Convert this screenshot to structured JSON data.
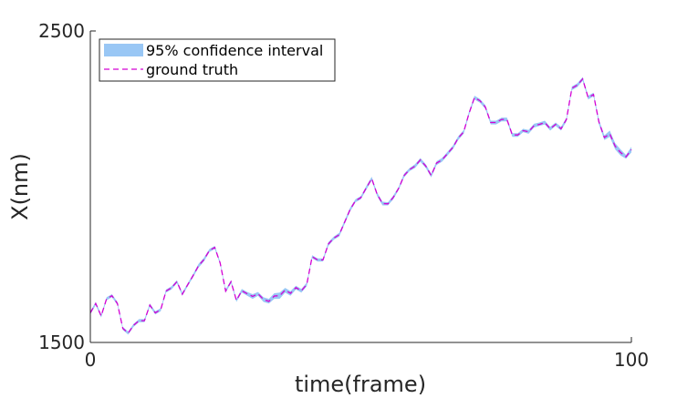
{
  "chart_data": {
    "type": "line",
    "title": "",
    "xlabel": "time(frame)",
    "ylabel": "X(nm)",
    "xlim": [
      0,
      100
    ],
    "ylim": [
      1500,
      2500
    ],
    "xticks": [
      "0",
      "100"
    ],
    "yticks": [
      "1500",
      "2500"
    ],
    "grid": false,
    "legend_position": "top-left",
    "series": [
      {
        "name": "95% confidence interval",
        "kind": "band",
        "color": "#99c7f5",
        "x": [
          0,
          1,
          2,
          3,
          4,
          5,
          6,
          7,
          8,
          9,
          10,
          11,
          12,
          13,
          14,
          15,
          16,
          17,
          18,
          19,
          20,
          21,
          22,
          23,
          24,
          25,
          26,
          27,
          28,
          29,
          30,
          31,
          32,
          33,
          34,
          35,
          36,
          37,
          38,
          39,
          40,
          41,
          42,
          43,
          44,
          45,
          46,
          47,
          48,
          49,
          50,
          51,
          52,
          53,
          54,
          55,
          56,
          57,
          58,
          59,
          60,
          61,
          62,
          63,
          64,
          65,
          66,
          67,
          68,
          69,
          70,
          71,
          72,
          73,
          74,
          75,
          76,
          77,
          78,
          79,
          80,
          81,
          82,
          83,
          84,
          85,
          86,
          87,
          88,
          89,
          90,
          91,
          92,
          93,
          94,
          95,
          96,
          97,
          98,
          99,
          100
        ],
        "lower": [
          1590,
          1620,
          1580,
          1635,
          1645,
          1620,
          1540,
          1525,
          1550,
          1565,
          1565,
          1615,
          1590,
          1600,
          1660,
          1670,
          1690,
          1650,
          1680,
          1710,
          1740,
          1760,
          1790,
          1800,
          1750,
          1660,
          1690,
          1630,
          1660,
          1650,
          1640,
          1650,
          1630,
          1625,
          1640,
          1640,
          1660,
          1650,
          1670,
          1660,
          1680,
          1770,
          1760,
          1760,
          1810,
          1830,
          1840,
          1880,
          1920,
          1950,
          1960,
          1990,
          2020,
          1970,
          1940,
          1940,
          1960,
          1990,
          2030,
          2050,
          2060,
          2080,
          2060,
          2030,
          2070,
          2080,
          2100,
          2120,
          2150,
          2170,
          2230,
          2280,
          2270,
          2250,
          2200,
          2200,
          2210,
          2210,
          2160,
          2160,
          2175,
          2170,
          2190,
          2195,
          2200,
          2180,
          2195,
          2180,
          2210,
          2310,
          2320,
          2340,
          2280,
          2290,
          2200,
          2150,
          2160,
          2120,
          2100,
          2090,
          2110
        ],
        "upper": [
          1600,
          1630,
          1590,
          1645,
          1655,
          1630,
          1550,
          1535,
          1560,
          1575,
          1575,
          1625,
          1600,
          1610,
          1670,
          1680,
          1700,
          1660,
          1690,
          1720,
          1752,
          1772,
          1800,
          1810,
          1760,
          1670,
          1700,
          1640,
          1672,
          1662,
          1655,
          1662,
          1645,
          1640,
          1658,
          1660,
          1675,
          1665,
          1682,
          1672,
          1692,
          1780,
          1770,
          1770,
          1822,
          1840,
          1852,
          1892,
          1932,
          1960,
          1970,
          2002,
          2032,
          1982,
          1952,
          1950,
          1972,
          2000,
          2042,
          2060,
          2072,
          2092,
          2072,
          2042,
          2082,
          2092,
          2112,
          2132,
          2162,
          2182,
          2242,
          2292,
          2282,
          2262,
          2212,
          2212,
          2222,
          2222,
          2172,
          2172,
          2186,
          2182,
          2202,
          2206,
          2212,
          2192,
          2206,
          2192,
          2222,
          2322,
          2332,
          2352,
          2292,
          2302,
          2215,
          2165,
          2180,
          2140,
          2120,
          2102,
          2128
        ]
      },
      {
        "name": "ground truth",
        "kind": "line",
        "style": "dashed",
        "color": "#d400d4",
        "x": [
          0,
          1,
          2,
          3,
          4,
          5,
          6,
          7,
          8,
          9,
          10,
          11,
          12,
          13,
          14,
          15,
          16,
          17,
          18,
          19,
          20,
          21,
          22,
          23,
          24,
          25,
          26,
          27,
          28,
          29,
          30,
          31,
          32,
          33,
          34,
          35,
          36,
          37,
          38,
          39,
          40,
          41,
          42,
          43,
          44,
          45,
          46,
          47,
          48,
          49,
          50,
          51,
          52,
          53,
          54,
          55,
          56,
          57,
          58,
          59,
          60,
          61,
          62,
          63,
          64,
          65,
          66,
          67,
          68,
          69,
          70,
          71,
          72,
          73,
          74,
          75,
          76,
          77,
          78,
          79,
          80,
          81,
          82,
          83,
          84,
          85,
          86,
          87,
          88,
          89,
          90,
          91,
          92,
          93,
          94,
          95,
          96,
          97,
          98,
          99,
          100
        ],
        "values": [
          1595,
          1625,
          1585,
          1640,
          1650,
          1625,
          1545,
          1530,
          1555,
          1570,
          1570,
          1620,
          1595,
          1605,
          1665,
          1675,
          1695,
          1655,
          1685,
          1715,
          1746,
          1766,
          1795,
          1805,
          1755,
          1665,
          1695,
          1635,
          1666,
          1656,
          1648,
          1656,
          1638,
          1632,
          1649,
          1650,
          1668,
          1658,
          1676,
          1666,
          1686,
          1775,
          1765,
          1765,
          1816,
          1835,
          1846,
          1886,
          1926,
          1955,
          1965,
          1996,
          2026,
          1976,
          1946,
          1945,
          1966,
          1995,
          2036,
          2055,
          2066,
          2086,
          2066,
          2036,
          2076,
          2086,
          2106,
          2126,
          2156,
          2176,
          2236,
          2286,
          2276,
          2256,
          2206,
          2206,
          2216,
          2216,
          2166,
          2166,
          2180,
          2176,
          2196,
          2200,
          2206,
          2186,
          2200,
          2186,
          2216,
          2316,
          2326,
          2346,
          2286,
          2296,
          2208,
          2158,
          2170,
          2130,
          2110,
          2096,
          2119
        ]
      }
    ]
  }
}
